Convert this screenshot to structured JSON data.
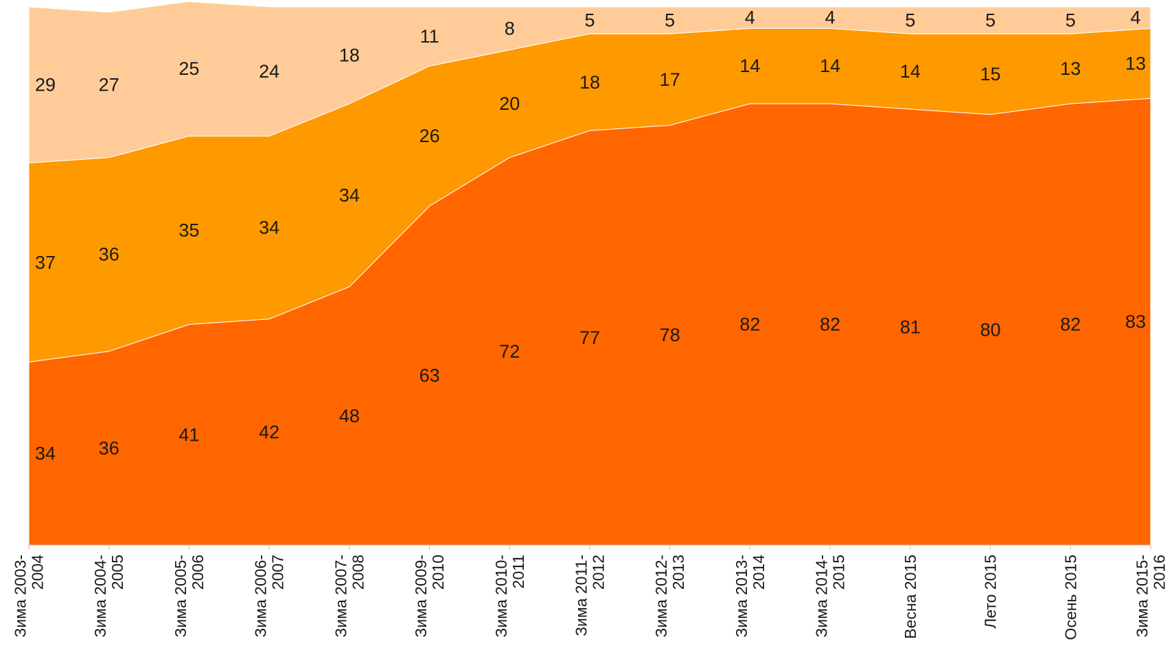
{
  "chart_data": {
    "type": "area",
    "stacked": true,
    "categories": [
      [
        "Зима 2003-",
        "2004"
      ],
      [
        "Зима 2004-",
        "2005"
      ],
      [
        "Зима  2005-",
        "2006"
      ],
      [
        "Зима 2006-",
        "2007"
      ],
      [
        "Зима 2007-",
        "2008"
      ],
      [
        "Зима 2009-",
        "2010"
      ],
      [
        "Зима 2010-",
        "2011"
      ],
      [
        "Зима 2011-",
        "2012"
      ],
      [
        "Зима 2012-",
        "2013"
      ],
      [
        "Зима 2013-",
        "2014"
      ],
      [
        "Зима 2014-",
        "2015"
      ],
      [
        "Весна 2015"
      ],
      [
        "Лето 2015"
      ],
      [
        "Осень 2015"
      ],
      [
        "Зима 2015-",
        "2016"
      ]
    ],
    "series": [
      {
        "values": [
          34,
          36,
          41,
          42,
          48,
          63,
          72,
          77,
          78,
          82,
          82,
          81,
          80,
          82,
          83
        ],
        "color": "#ff6600"
      },
      {
        "values": [
          37,
          36,
          35,
          34,
          34,
          26,
          20,
          18,
          17,
          14,
          14,
          14,
          15,
          13,
          13
        ],
        "color": "#ff9900"
      },
      {
        "values": [
          29,
          27,
          25,
          24,
          18,
          11,
          8,
          5,
          5,
          4,
          4,
          5,
          5,
          5,
          4
        ],
        "color": "#ffcc99"
      }
    ],
    "ylim": [
      0,
      100
    ],
    "grid": false,
    "legend": false
  }
}
